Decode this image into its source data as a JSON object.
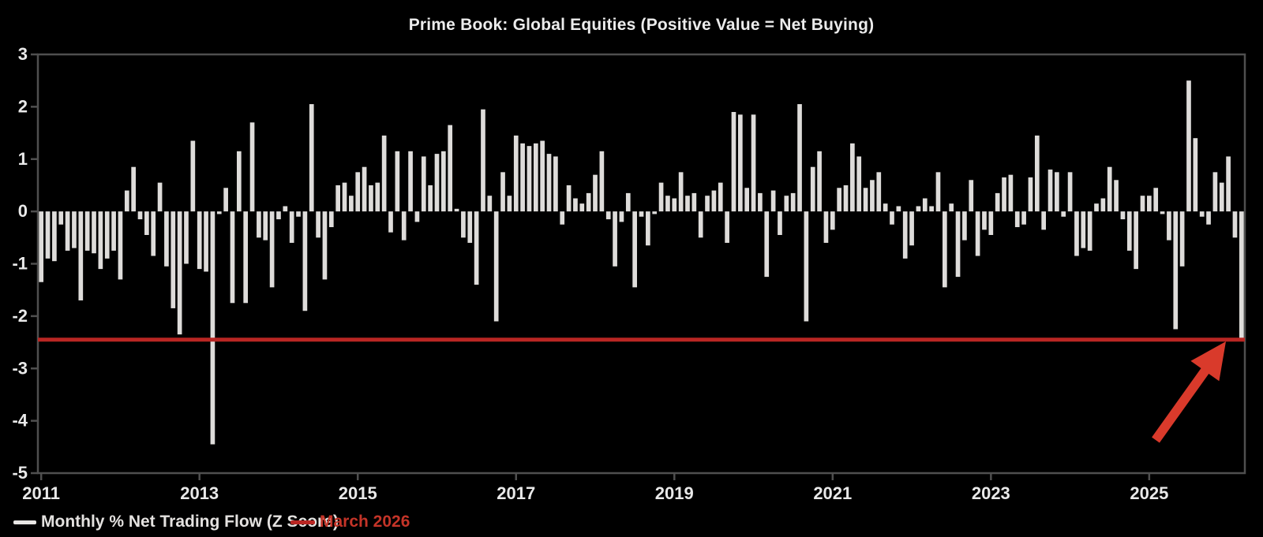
{
  "title": "Prime Book: Global Equities (Positive Value = Net Buying)",
  "legend": {
    "series_label": "Monthly % Net Trading Flow (Z Score)",
    "refline_label": "March 2026"
  },
  "colors": {
    "background": "#000000",
    "bar": "#dedcda",
    "axis": "#4f4f4f",
    "tick_text": "#e9e9e9",
    "reference_line": "#b92623",
    "arrow": "#d93a2b",
    "legend_red_text": "#c43428"
  },
  "chart_data": {
    "type": "bar",
    "title": "Prime Book: Global Equities (Positive Value = Net Buying)",
    "series_name": "Monthly % Net Trading Flow (Z Score)",
    "xlabel": "",
    "ylabel": "",
    "frequency": "monthly",
    "x_start": "2011-01",
    "x_end": "2026-03",
    "ylim": [
      -5,
      3
    ],
    "y_ticks": [
      3,
      2,
      1,
      0,
      -1,
      -2,
      -3,
      -4,
      -5
    ],
    "x_tick_labels": [
      "2011",
      "2013",
      "2015",
      "2017",
      "2019",
      "2021",
      "2023",
      "2025"
    ],
    "x_tick_every_n_bars": 24,
    "grid": false,
    "legend_position": "bottom-left",
    "reference_line": {
      "label": "March 2026",
      "value": -2.45
    },
    "annotation": {
      "type": "arrow",
      "points_to": "last bar / March 2026 level"
    },
    "values": [
      -1.35,
      -0.9,
      -0.95,
      -0.25,
      -0.75,
      -0.7,
      -1.7,
      -0.75,
      -0.8,
      -1.1,
      -0.9,
      -0.75,
      -1.3,
      0.4,
      0.85,
      -0.15,
      -0.45,
      -0.85,
      0.55,
      -1.05,
      -1.85,
      -2.35,
      -1.0,
      1.35,
      -1.1,
      -1.15,
      -4.45,
      -0.05,
      0.45,
      -1.75,
      1.15,
      -1.75,
      1.7,
      -0.5,
      -0.55,
      -1.45,
      -0.15,
      0.1,
      -0.6,
      -0.1,
      -1.9,
      2.05,
      -0.5,
      -1.3,
      -0.3,
      0.5,
      0.55,
      0.3,
      0.75,
      0.85,
      0.5,
      0.55,
      1.45,
      -0.4,
      1.15,
      -0.55,
      1.15,
      -0.2,
      1.05,
      0.5,
      1.1,
      1.15,
      1.65,
      0.05,
      -0.5,
      -0.6,
      -1.4,
      1.95,
      0.3,
      -2.1,
      0.75,
      0.3,
      1.45,
      1.3,
      1.25,
      1.3,
      1.35,
      1.1,
      1.05,
      -0.25,
      0.5,
      0.25,
      0.15,
      0.35,
      0.7,
      1.15,
      -0.15,
      -1.05,
      -0.2,
      0.35,
      -1.45,
      -0.1,
      -0.65,
      -0.05,
      0.55,
      0.3,
      0.25,
      0.75,
      0.3,
      0.35,
      -0.5,
      0.3,
      0.4,
      0.55,
      -0.6,
      1.9,
      1.85,
      0.45,
      1.85,
      0.35,
      -1.25,
      0.4,
      -0.45,
      0.3,
      0.35,
      2.05,
      -2.1,
      0.85,
      1.15,
      -0.6,
      -0.35,
      0.45,
      0.5,
      1.3,
      1.05,
      0.45,
      0.6,
      0.75,
      0.15,
      -0.25,
      0.1,
      -0.9,
      -0.65,
      0.1,
      0.25,
      0.1,
      0.75,
      -1.45,
      0.15,
      -1.25,
      -0.55,
      0.6,
      -0.85,
      -0.35,
      -0.45,
      0.35,
      0.65,
      0.7,
      -0.3,
      -0.25,
      0.65,
      1.45,
      -0.35,
      0.8,
      0.75,
      -0.1,
      0.75,
      -0.85,
      -0.7,
      -0.75,
      0.15,
      0.25,
      0.85,
      0.6,
      -0.15,
      -0.75,
      -1.1,
      0.3,
      0.3,
      0.45,
      -0.05,
      -0.55,
      -2.25,
      -1.05,
      2.5,
      1.4,
      -0.1,
      -0.25,
      0.75,
      0.55,
      1.05,
      -0.5,
      -2.45
    ]
  }
}
